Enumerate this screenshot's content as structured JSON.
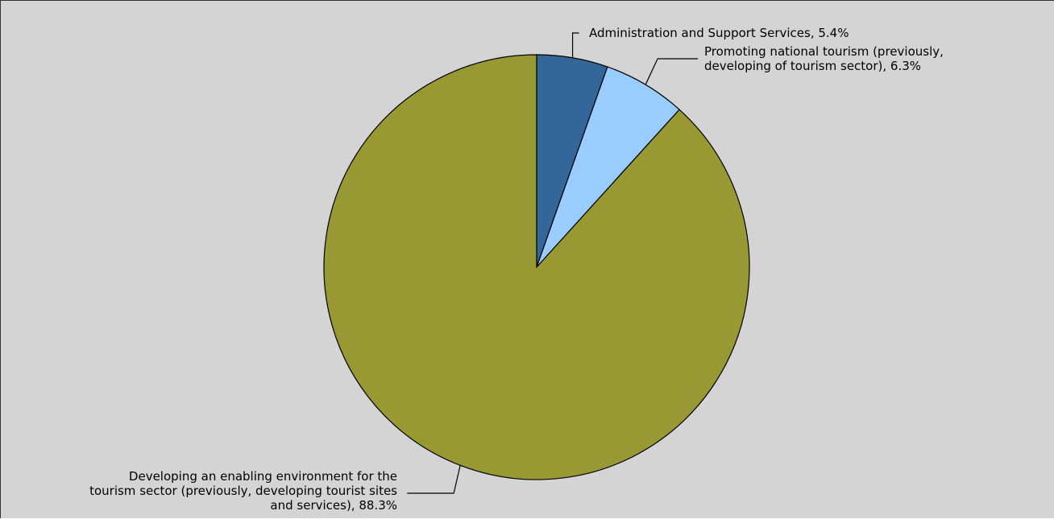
{
  "chart_data": {
    "type": "pie",
    "title": "",
    "slices": [
      {
        "label": "Administration and Support Services",
        "value": 5.4,
        "display": "Administration and Support Services, 5.4%",
        "color": "#336699"
      },
      {
        "label": "Promoting national tourism (previously, developing of tourism sector)",
        "value": 6.3,
        "display_lines": [
          "Promoting national tourism (previously,",
          "developing of tourism sector), 6.3%"
        ],
        "color": "#99ccff"
      },
      {
        "label": "Developing an enabling environment for the tourism sector (previously, developing tourist sites and services)",
        "value": 88.3,
        "display_lines": [
          "Developing an enabling environment for the",
          "tourism sector (previously, developing tourist sites",
          "and services), 88.3%"
        ],
        "color": "#999933"
      }
    ],
    "start_angle": "12 o'clock",
    "direction": "clockwise",
    "background": "#d4d4d4"
  }
}
